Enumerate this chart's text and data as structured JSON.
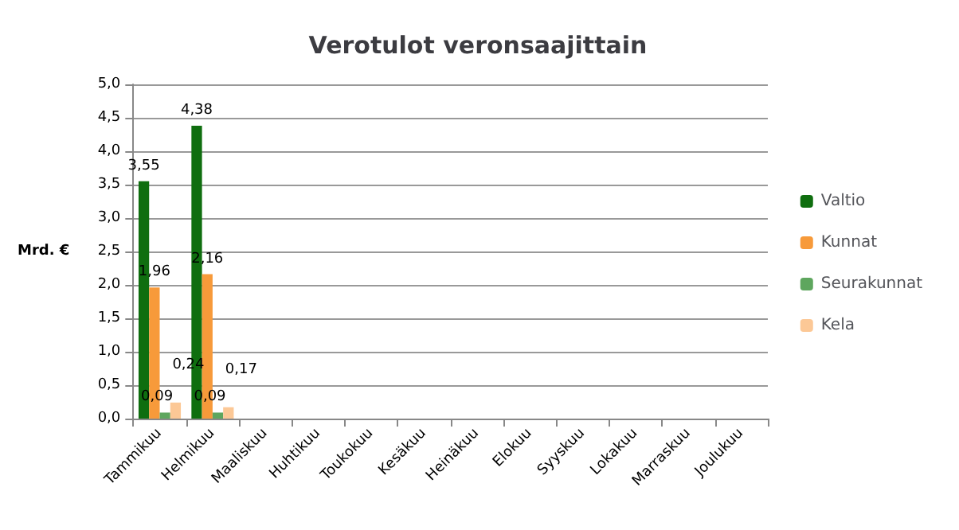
{
  "chart_data": {
    "type": "bar",
    "title": "Verotulot veronsaajittain",
    "ylabel": "Mrd. €",
    "categories": [
      "Tammikuu",
      "Helmikuu",
      "Maaliskuu",
      "Huhtikuu",
      "Toukokuu",
      "Kesäkuu",
      "Heinäkuu",
      "Elokuu",
      "Syyskuu",
      "Lokakuu",
      "Marraskuu",
      "Joulukuu"
    ],
    "series": [
      {
        "name": "Valtio",
        "color": "#0f6e0f",
        "values": [
          3.55,
          4.38,
          null,
          null,
          null,
          null,
          null,
          null,
          null,
          null,
          null,
          null
        ],
        "value_labels": [
          "3,55",
          "4,38",
          null,
          null,
          null,
          null,
          null,
          null,
          null,
          null,
          null,
          null
        ]
      },
      {
        "name": "Kunnat",
        "color": "#f79a3a",
        "values": [
          1.96,
          2.16,
          null,
          null,
          null,
          null,
          null,
          null,
          null,
          null,
          null,
          null
        ],
        "value_labels": [
          "1,96",
          "2,16",
          null,
          null,
          null,
          null,
          null,
          null,
          null,
          null,
          null,
          null
        ]
      },
      {
        "name": "Seurakunnat",
        "color": "#5ea65e",
        "values": [
          0.09,
          0.09,
          null,
          null,
          null,
          null,
          null,
          null,
          null,
          null,
          null,
          null
        ],
        "value_labels": [
          "0,09",
          "0,09",
          null,
          null,
          null,
          null,
          null,
          null,
          null,
          null,
          null,
          null
        ]
      },
      {
        "name": "Kela",
        "color": "#fcc896",
        "values": [
          0.24,
          0.17,
          null,
          null,
          null,
          null,
          null,
          null,
          null,
          null,
          null,
          null
        ],
        "value_labels": [
          "0,24",
          "0,17",
          null,
          null,
          null,
          null,
          null,
          null,
          null,
          null,
          null,
          null
        ]
      }
    ],
    "ylim": [
      0,
      5
    ],
    "yticks": [
      {
        "value": 0,
        "label": "0,0"
      },
      {
        "value": 0.5,
        "label": "0,5"
      },
      {
        "value": 1,
        "label": "1,0"
      },
      {
        "value": 1.5,
        "label": "1,5"
      },
      {
        "value": 2,
        "label": "2,0"
      },
      {
        "value": 2.5,
        "label": "2,5"
      },
      {
        "value": 3,
        "label": "3,0"
      },
      {
        "value": 3.5,
        "label": "3,5"
      },
      {
        "value": 4,
        "label": "4,0"
      },
      {
        "value": 4.5,
        "label": "4,5"
      },
      {
        "value": 5,
        "label": "5,0"
      }
    ],
    "grid": true,
    "legend": "right"
  }
}
